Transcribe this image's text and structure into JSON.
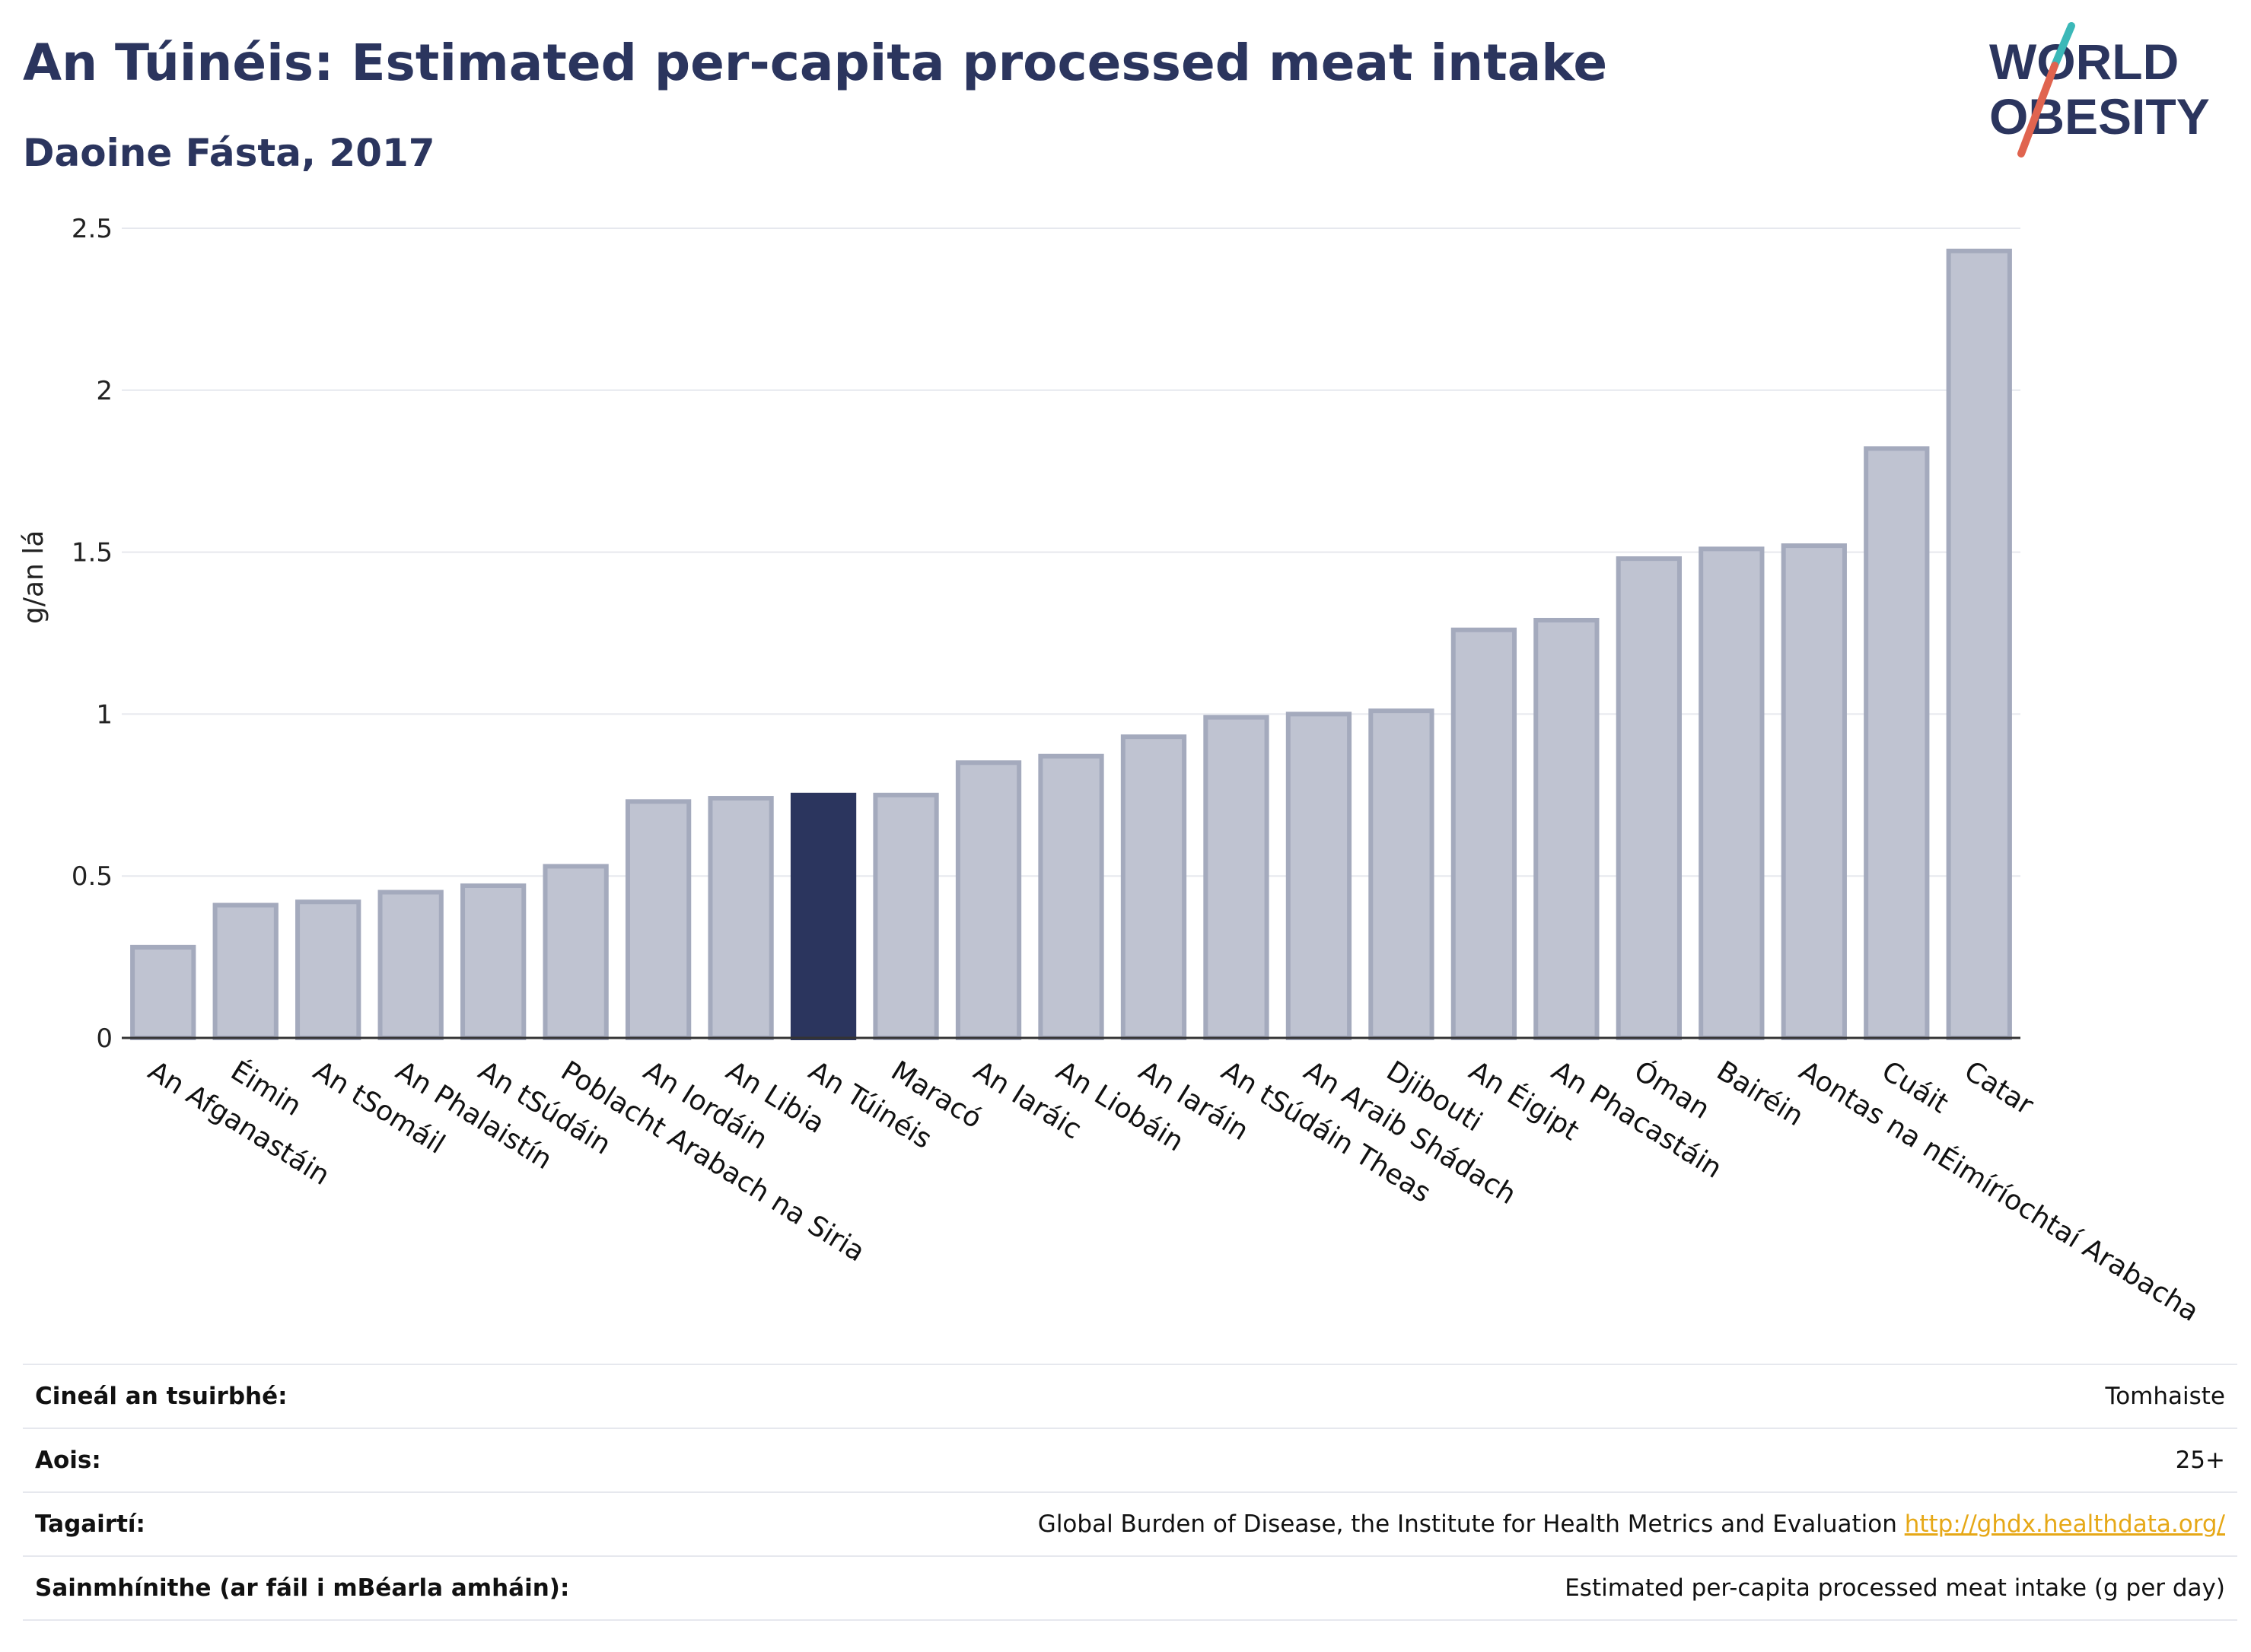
{
  "header": {
    "title": "An Túinéis: Estimated per-capita processed meat intake",
    "subtitle": "Daoine Fásta, 2017"
  },
  "logo": {
    "line1": "WORLD",
    "line2": "OBESITY",
    "colors": {
      "text": "#2b355e",
      "slash_top": "#3bb8b8",
      "slash_bottom": "#e0644f"
    }
  },
  "chart_data": {
    "type": "bar",
    "ylabel": "g/an lá",
    "ylim": [
      0,
      2.5
    ],
    "yticks": [
      0,
      0.5,
      1,
      1.5,
      2,
      2.5
    ],
    "ytick_labels": [
      "0",
      "0.5",
      "1",
      "1.5",
      "2",
      "2.5"
    ],
    "grid": true,
    "highlight": "An Túinéis",
    "colors": {
      "bar": "#bfc3d1",
      "bar_border": "#a4aabd",
      "highlight": "#2b355e"
    },
    "categories": [
      "An Afganastáin",
      "Éimin",
      "An tSomáil",
      "An Phalaistín",
      "An tSúdáin",
      "Poblacht Arabach na Siria",
      "An Iordáin",
      "An Libia",
      "An Túinéis",
      "Maracó",
      "An Iaráic",
      "An Liobáin",
      "An Iaráin",
      "An tSúdáin Theas",
      "An Araib Shádach",
      "Djibouti",
      "An Éigipt",
      "An Phacastáin",
      "Óman",
      "Bairéin",
      "Aontas na nÉimíríochtaí Arabacha",
      "Cuáit",
      "Catar"
    ],
    "values": [
      0.28,
      0.41,
      0.42,
      0.45,
      0.47,
      0.53,
      0.73,
      0.74,
      0.75,
      0.75,
      0.85,
      0.87,
      0.93,
      0.99,
      1.0,
      1.01,
      1.26,
      1.29,
      1.48,
      1.51,
      1.52,
      1.82,
      2.43
    ]
  },
  "info": [
    {
      "key": "Cineál an tsuirbhé:",
      "value": "Tomhaiste"
    },
    {
      "key": "Aois:",
      "value": "25+"
    },
    {
      "key": "Tagairtí:",
      "value": "Global Burden of Disease, the Institute for Health Metrics and Evaluation",
      "link": "http://ghdx.healthdata.org/"
    },
    {
      "key": "Sainmhínithe (ar fáil i mBéarla amháin):",
      "value": "Estimated per-capita processed meat intake (g per day)"
    }
  ]
}
